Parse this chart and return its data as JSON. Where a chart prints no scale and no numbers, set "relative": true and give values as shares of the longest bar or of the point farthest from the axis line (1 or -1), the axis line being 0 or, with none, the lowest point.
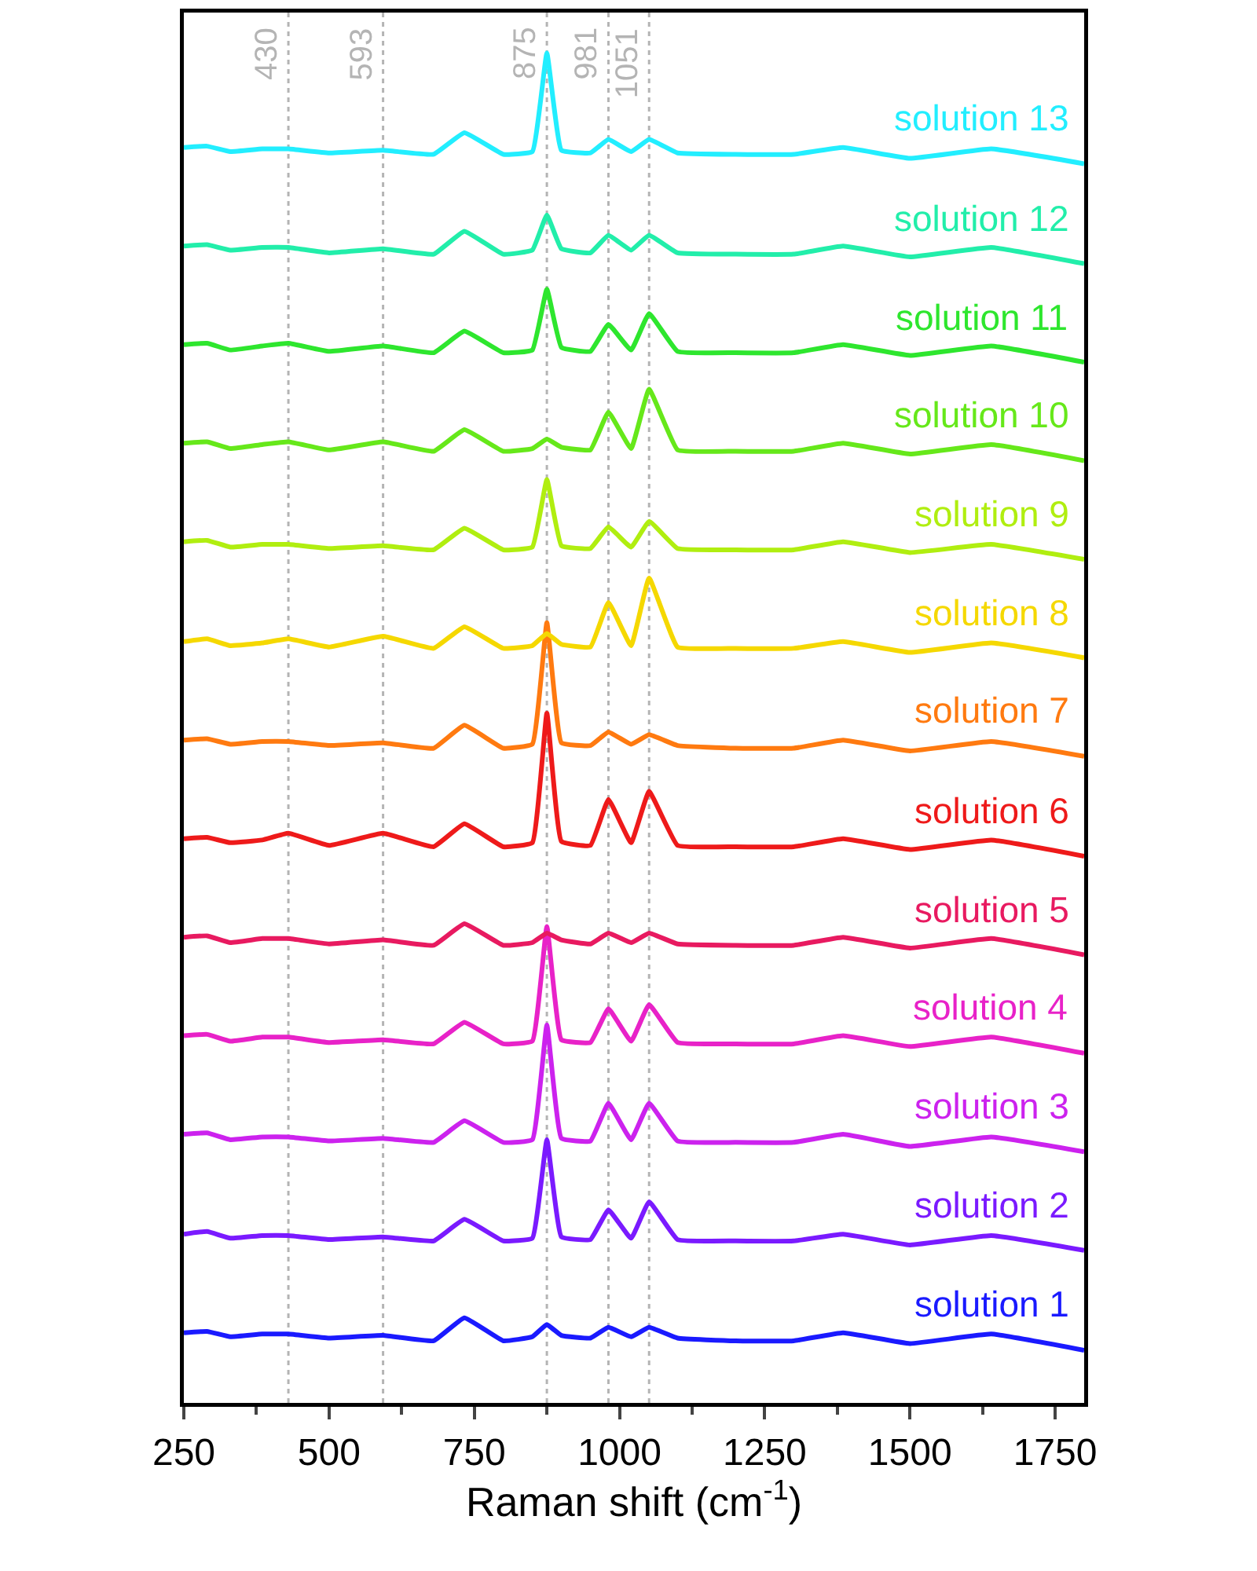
{
  "chart_data": {
    "type": "line",
    "relative": true,
    "xlabel": "Raman shift (cm$^{-1}$)",
    "xlim": [
      250,
      1800
    ],
    "xticks": [
      250,
      500,
      750,
      1000,
      1250,
      1500,
      1750
    ],
    "tick_labels": "x",
    "grid": false,
    "legend": false,
    "marker": "none",
    "line_style": "solid",
    "x": [
      250,
      290,
      330,
      385,
      430,
      500,
      593,
      680,
      733,
      800,
      850,
      875,
      900,
      950,
      981,
      1020,
      1051,
      1100,
      1200,
      1300,
      1385,
      1500,
      1640,
      1800
    ],
    "series": [
      {
        "name": "solution 1",
        "color": "#1a1aff",
        "values": [
          0.052,
          0.053,
          0.049,
          0.051,
          0.051,
          0.048,
          0.05,
          0.046,
          0.063,
          0.046,
          0.049,
          0.058,
          0.05,
          0.048,
          0.056,
          0.049,
          0.056,
          0.048,
          0.046,
          0.046,
          0.052,
          0.044,
          0.051,
          0.039
        ]
      },
      {
        "name": "solution 2",
        "color": "#7a1aff",
        "values": [
          0.125,
          0.127,
          0.122,
          0.124,
          0.124,
          0.121,
          0.123,
          0.12,
          0.136,
          0.12,
          0.122,
          0.195,
          0.123,
          0.121,
          0.143,
          0.122,
          0.149,
          0.121,
          0.12,
          0.12,
          0.125,
          0.117,
          0.124,
          0.113
        ]
      },
      {
        "name": "solution 3",
        "color": "#cc22ee",
        "values": [
          0.199,
          0.2,
          0.195,
          0.197,
          0.197,
          0.194,
          0.196,
          0.193,
          0.209,
          0.193,
          0.195,
          0.28,
          0.196,
          0.194,
          0.222,
          0.195,
          0.222,
          0.194,
          0.193,
          0.193,
          0.199,
          0.19,
          0.197,
          0.186
        ]
      },
      {
        "name": "solution 4",
        "color": "#e822c8",
        "values": [
          0.272,
          0.273,
          0.268,
          0.271,
          0.271,
          0.267,
          0.269,
          0.266,
          0.282,
          0.266,
          0.268,
          0.353,
          0.269,
          0.267,
          0.292,
          0.268,
          0.295,
          0.267,
          0.266,
          0.266,
          0.272,
          0.264,
          0.271,
          0.259
        ]
      },
      {
        "name": "solution 5",
        "color": "#e81a60",
        "values": [
          0.345,
          0.346,
          0.341,
          0.344,
          0.344,
          0.34,
          0.343,
          0.339,
          0.355,
          0.339,
          0.341,
          0.348,
          0.343,
          0.34,
          0.348,
          0.341,
          0.348,
          0.34,
          0.339,
          0.339,
          0.345,
          0.337,
          0.344,
          0.332
        ]
      },
      {
        "name": "solution 6",
        "color": "#ee1a1a",
        "values": [
          0.418,
          0.419,
          0.415,
          0.417,
          0.422,
          0.413,
          0.422,
          0.412,
          0.429,
          0.412,
          0.415,
          0.511,
          0.416,
          0.413,
          0.447,
          0.415,
          0.453,
          0.413,
          0.412,
          0.412,
          0.418,
          0.41,
          0.417,
          0.405
        ]
      },
      {
        "name": "solution 7",
        "color": "#ff7a10",
        "values": [
          0.491,
          0.492,
          0.488,
          0.49,
          0.49,
          0.487,
          0.489,
          0.485,
          0.502,
          0.485,
          0.488,
          0.578,
          0.489,
          0.487,
          0.497,
          0.488,
          0.495,
          0.487,
          0.485,
          0.485,
          0.491,
          0.483,
          0.49,
          0.479
        ]
      },
      {
        "name": "solution 8",
        "color": "#f5d800",
        "values": [
          0.564,
          0.566,
          0.561,
          0.563,
          0.566,
          0.56,
          0.568,
          0.559,
          0.575,
          0.559,
          0.561,
          0.57,
          0.562,
          0.56,
          0.593,
          0.561,
          0.611,
          0.56,
          0.559,
          0.559,
          0.564,
          0.556,
          0.563,
          0.552
        ]
      },
      {
        "name": "solution 9",
        "color": "#b0ee10",
        "values": [
          0.638,
          0.639,
          0.634,
          0.636,
          0.636,
          0.633,
          0.635,
          0.632,
          0.648,
          0.632,
          0.634,
          0.684,
          0.635,
          0.633,
          0.649,
          0.634,
          0.653,
          0.633,
          0.632,
          0.632,
          0.638,
          0.63,
          0.636,
          0.625
        ]
      },
      {
        "name": "solution 10",
        "color": "#66e81a",
        "values": [
          0.711,
          0.712,
          0.707,
          0.71,
          0.712,
          0.706,
          0.712,
          0.705,
          0.721,
          0.705,
          0.707,
          0.714,
          0.708,
          0.706,
          0.734,
          0.707,
          0.751,
          0.706,
          0.705,
          0.705,
          0.711,
          0.703,
          0.71,
          0.698
        ]
      },
      {
        "name": "solution 11",
        "color": "#2ee62e",
        "values": [
          0.784,
          0.785,
          0.78,
          0.783,
          0.785,
          0.779,
          0.783,
          0.778,
          0.794,
          0.778,
          0.78,
          0.825,
          0.782,
          0.779,
          0.799,
          0.78,
          0.807,
          0.779,
          0.778,
          0.778,
          0.784,
          0.776,
          0.783,
          0.771
        ]
      },
      {
        "name": "solution 12",
        "color": "#22eeaa",
        "values": [
          0.857,
          0.858,
          0.854,
          0.856,
          0.856,
          0.852,
          0.855,
          0.851,
          0.868,
          0.851,
          0.854,
          0.88,
          0.855,
          0.852,
          0.865,
          0.854,
          0.865,
          0.852,
          0.851,
          0.851,
          0.857,
          0.849,
          0.856,
          0.844
        ]
      },
      {
        "name": "solution 13",
        "color": "#22eeff",
        "values": [
          0.93,
          0.931,
          0.927,
          0.929,
          0.929,
          0.926,
          0.928,
          0.925,
          0.941,
          0.925,
          0.927,
          1.0,
          0.928,
          0.926,
          0.936,
          0.927,
          0.936,
          0.926,
          0.925,
          0.925,
          0.93,
          0.922,
          0.929,
          0.918
        ]
      }
    ],
    "ref_lines": [
      {
        "axis": "x",
        "value": 430,
        "label": "430",
        "color": "#b4b4b4",
        "line_style": "dotted"
      },
      {
        "axis": "x",
        "value": 593,
        "label": "593",
        "color": "#b4b4b4",
        "line_style": "dotted"
      },
      {
        "axis": "x",
        "value": 875,
        "label": "875",
        "color": "#b4b4b4",
        "line_style": "dotted"
      },
      {
        "axis": "x",
        "value": 981,
        "label": "981",
        "color": "#b4b4b4",
        "line_style": "dotted"
      },
      {
        "axis": "x",
        "value": 1051,
        "label": "1051",
        "color": "#b4b4b4",
        "line_style": "dotted"
      }
    ]
  }
}
